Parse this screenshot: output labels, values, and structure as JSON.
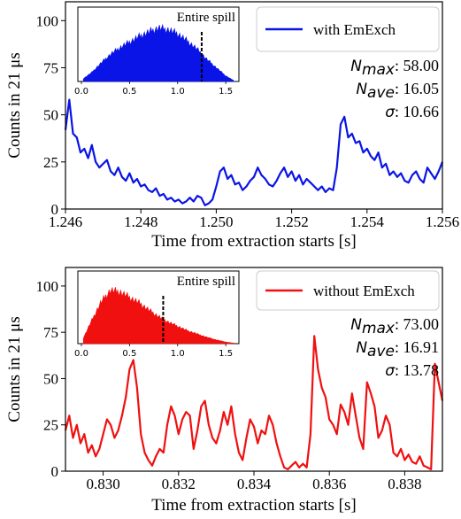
{
  "chart_data": [
    {
      "type": "line",
      "panel": "top",
      "color": "#0a14e6",
      "xlabel": "Time from extraction starts [s]",
      "ylabel": "Counts in 21 μs",
      "xlim": [
        1.246,
        1.256
      ],
      "ylim": [
        0,
        110
      ],
      "xticks": [
        "1.246",
        "1.248",
        "1.250",
        "1.252",
        "1.254",
        "1.256"
      ],
      "yticks": [
        "0",
        "25",
        "50",
        "75",
        "100"
      ],
      "legend": "with EmExch",
      "legend_position": "top-right",
      "stats": [
        {
          "label": "N",
          "sub": "max",
          "value": "58.00"
        },
        {
          "label": "N",
          "sub": "ave",
          "value": "16.05"
        },
        {
          "label": "σ",
          "sub": "",
          "value": "10.66"
        }
      ],
      "series": [
        {
          "name": "with EmExch",
          "x": [
            1.246,
            1.2461,
            1.2462,
            1.2463,
            1.2464,
            1.2465,
            1.2466,
            1.2467,
            1.2468,
            1.2469,
            1.247,
            1.2471,
            1.2472,
            1.2473,
            1.2474,
            1.2475,
            1.2476,
            1.2477,
            1.2478,
            1.2479,
            1.248,
            1.2481,
            1.2482,
            1.2483,
            1.2484,
            1.2485,
            1.2486,
            1.2487,
            1.2488,
            1.2489,
            1.249,
            1.2491,
            1.2492,
            1.2493,
            1.2494,
            1.2495,
            1.2496,
            1.2497,
            1.2498,
            1.2499,
            1.25,
            1.2501,
            1.2502,
            1.2503,
            1.2504,
            1.2505,
            1.2506,
            1.2507,
            1.2508,
            1.2509,
            1.251,
            1.2511,
            1.2512,
            1.2513,
            1.2514,
            1.2515,
            1.2516,
            1.2517,
            1.2518,
            1.2519,
            1.252,
            1.2521,
            1.2522,
            1.2523,
            1.2524,
            1.2525,
            1.2526,
            1.2527,
            1.2528,
            1.2529,
            1.253,
            1.2531,
            1.2532,
            1.2533,
            1.2534,
            1.2535,
            1.2536,
            1.2537,
            1.2538,
            1.2539,
            1.254,
            1.2541,
            1.2542,
            1.2543,
            1.2544,
            1.2545,
            1.2546,
            1.2547,
            1.2548,
            1.2549,
            1.255,
            1.2551,
            1.2552,
            1.2553,
            1.2554,
            1.2555,
            1.2556,
            1.2557,
            1.2558,
            1.2559,
            1.256
          ],
          "y": [
            42,
            58,
            40,
            38,
            30,
            32,
            27,
            34,
            25,
            22,
            24,
            26,
            20,
            18,
            22,
            17,
            15,
            19,
            14,
            16,
            12,
            13,
            10,
            9,
            11,
            7,
            8,
            5,
            6,
            4,
            5,
            3,
            4,
            6,
            4,
            7,
            6,
            2,
            3,
            5,
            12,
            20,
            22,
            16,
            18,
            13,
            14,
            10,
            12,
            15,
            17,
            22,
            18,
            16,
            13,
            12,
            15,
            19,
            22,
            17,
            20,
            15,
            18,
            13,
            16,
            14,
            12,
            10,
            12,
            9,
            11,
            10,
            22,
            45,
            49,
            38,
            40,
            35,
            36,
            30,
            32,
            28,
            26,
            30,
            22,
            24,
            18,
            20,
            17,
            19,
            15,
            14,
            18,
            20,
            16,
            14,
            22,
            19,
            16,
            20,
            25
          ]
        }
      ],
      "inset": {
        "label": "Entire spill",
        "xticks": [
          "0.0",
          "0.5",
          "1.0",
          "1.5"
        ],
        "xlim": [
          0,
          1.6
        ],
        "marker_x": 1.25,
        "color": "#0a14e6",
        "x": [
          0.02,
          0.1,
          0.2,
          0.3,
          0.4,
          0.5,
          0.6,
          0.7,
          0.8,
          0.9,
          1.0,
          1.1,
          1.2,
          1.3,
          1.4,
          1.5,
          1.58
        ],
        "y": [
          0.05,
          0.15,
          0.32,
          0.48,
          0.6,
          0.7,
          0.8,
          0.88,
          0.95,
          0.92,
          0.85,
          0.72,
          0.58,
          0.4,
          0.25,
          0.1,
          0.02
        ]
      }
    },
    {
      "type": "line",
      "panel": "bottom",
      "color": "#f01010",
      "xlabel": "Time from extraction starts [s]",
      "ylabel": "Counts in 21 μs",
      "xlim": [
        0.829,
        0.839
      ],
      "ylim": [
        0,
        110
      ],
      "xticks": [
        "0.830",
        "0.832",
        "0.834",
        "0.836",
        "0.838"
      ],
      "yticks": [
        "0",
        "25",
        "50",
        "75",
        "100"
      ],
      "legend": "without EmExch",
      "legend_position": "top-right",
      "stats": [
        {
          "label": "N",
          "sub": "max",
          "value": "73.00"
        },
        {
          "label": "N",
          "sub": "ave",
          "value": "16.91"
        },
        {
          "label": "σ",
          "sub": "",
          "value": "13.78"
        }
      ],
      "series": [
        {
          "name": "without EmExch",
          "x": [
            0.829,
            0.8291,
            0.8292,
            0.8293,
            0.8294,
            0.8295,
            0.8296,
            0.8297,
            0.8298,
            0.8299,
            0.83,
            0.8301,
            0.8302,
            0.8303,
            0.8304,
            0.8305,
            0.8306,
            0.8307,
            0.8308,
            0.8309,
            0.831,
            0.8311,
            0.8312,
            0.8313,
            0.8314,
            0.8315,
            0.8316,
            0.8317,
            0.8318,
            0.8319,
            0.832,
            0.8321,
            0.8322,
            0.8323,
            0.8324,
            0.8325,
            0.8326,
            0.8327,
            0.8328,
            0.8329,
            0.833,
            0.8331,
            0.8332,
            0.8333,
            0.8334,
            0.8335,
            0.8336,
            0.8337,
            0.8338,
            0.8339,
            0.834,
            0.8341,
            0.8342,
            0.8343,
            0.8344,
            0.8345,
            0.8346,
            0.8347,
            0.8348,
            0.8349,
            0.835,
            0.8351,
            0.8352,
            0.8353,
            0.8354,
            0.8355,
            0.8356,
            0.8357,
            0.8358,
            0.8359,
            0.836,
            0.8361,
            0.8362,
            0.8363,
            0.8364,
            0.8365,
            0.8366,
            0.8367,
            0.8368,
            0.8369,
            0.837,
            0.8371,
            0.8372,
            0.8373,
            0.8374,
            0.8375,
            0.8376,
            0.8377,
            0.8378,
            0.8379,
            0.838,
            0.8381,
            0.8382,
            0.8383,
            0.8384,
            0.8385,
            0.8386,
            0.8387,
            0.8388,
            0.8389,
            0.839
          ],
          "y": [
            22,
            30,
            18,
            25,
            15,
            20,
            10,
            14,
            8,
            12,
            20,
            28,
            25,
            18,
            22,
            30,
            40,
            55,
            60,
            45,
            20,
            10,
            6,
            3,
            8,
            12,
            10,
            25,
            35,
            30,
            20,
            28,
            32,
            30,
            12,
            22,
            35,
            38,
            25,
            18,
            15,
            22,
            32,
            25,
            35,
            20,
            10,
            6,
            18,
            28,
            24,
            15,
            22,
            20,
            30,
            25,
            15,
            8,
            2,
            1,
            3,
            5,
            2,
            4,
            2,
            20,
            73,
            55,
            45,
            40,
            28,
            25,
            20,
            36,
            32,
            25,
            42,
            30,
            18,
            12,
            48,
            42,
            35,
            18,
            22,
            30,
            25,
            10,
            8,
            12,
            6,
            9,
            5,
            4,
            8,
            3,
            2,
            1,
            58,
            48,
            38
          ]
        }
      ],
      "inset": {
        "label": "Entire spill",
        "xticks": [
          "0.0",
          "0.5",
          "1.0",
          "1.5"
        ],
        "xlim": [
          0,
          1.6
        ],
        "marker_x": 0.85,
        "color": "#f01010",
        "x": [
          0.02,
          0.1,
          0.2,
          0.3,
          0.4,
          0.5,
          0.6,
          0.7,
          0.8,
          0.9,
          1.0,
          1.1,
          1.2,
          1.3,
          1.4,
          1.5,
          1.58
        ],
        "y": [
          0.1,
          0.4,
          0.75,
          0.98,
          0.95,
          0.85,
          0.75,
          0.62,
          0.5,
          0.4,
          0.32,
          0.24,
          0.18,
          0.12,
          0.07,
          0.03,
          0.01
        ]
      }
    }
  ]
}
